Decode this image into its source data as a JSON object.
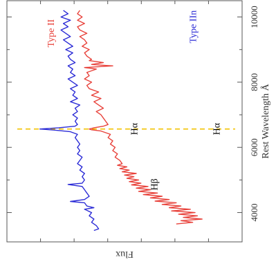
{
  "chart_data": {
    "type": "line",
    "orientation": "rotated-90-ccw",
    "xlabel": "Rest Wavelength Å",
    "ylabel": "Flux",
    "xlim": [
      3100,
      10500
    ],
    "x_ticks": [
      4000,
      6000,
      8000,
      10000
    ],
    "x_tick_labels": [
      "4000",
      "6000",
      "8000",
      "10000"
    ],
    "ylim": [
      0,
      1
    ],
    "grid": false,
    "marker_line": {
      "x": 6563,
      "color": "#f2c200",
      "style": "dashed"
    },
    "series": [
      {
        "name": "Type II",
        "color": "#e8413a",
        "x": [
          3650,
          3700,
          3750,
          3800,
          3850,
          3900,
          3950,
          4000,
          4050,
          4100,
          4150,
          4200,
          4250,
          4300,
          4350,
          4400,
          4450,
          4500,
          4550,
          4600,
          4650,
          4700,
          4750,
          4800,
          4850,
          4900,
          4950,
          5000,
          5050,
          5100,
          5150,
          5200,
          5250,
          5300,
          5350,
          5400,
          5450,
          5500,
          5600,
          5700,
          5800,
          5900,
          6000,
          6100,
          6200,
          6300,
          6400,
          6450,
          6500,
          6540,
          6563,
          6600,
          6650,
          6700,
          6800,
          6900,
          7000,
          7100,
          7200,
          7300,
          7400,
          7500,
          7600,
          7700,
          7800,
          7900,
          8000,
          8100,
          8200,
          8300,
          8400,
          8450,
          8500,
          8542,
          8600,
          8662,
          8700,
          8800,
          8900,
          9000,
          9100,
          9200,
          9300,
          9400,
          9500,
          9600,
          9700,
          9800,
          9900,
          10000,
          10100,
          10200
        ],
        "values": [
          0.72,
          0.79,
          0.74,
          0.83,
          0.75,
          0.81,
          0.73,
          0.8,
          0.7,
          0.78,
          0.69,
          0.74,
          0.66,
          0.72,
          0.63,
          0.69,
          0.61,
          0.66,
          0.58,
          0.64,
          0.56,
          0.61,
          0.55,
          0.6,
          0.53,
          0.57,
          0.52,
          0.56,
          0.51,
          0.54,
          0.5,
          0.55,
          0.49,
          0.52,
          0.48,
          0.51,
          0.47,
          0.49,
          0.48,
          0.46,
          0.47,
          0.45,
          0.46,
          0.44,
          0.45,
          0.43,
          0.44,
          0.42,
          0.4,
          0.36,
          0.35,
          0.37,
          0.41,
          0.43,
          0.42,
          0.41,
          0.4,
          0.38,
          0.41,
          0.39,
          0.37,
          0.4,
          0.36,
          0.39,
          0.35,
          0.34,
          0.36,
          0.33,
          0.35,
          0.34,
          0.38,
          0.33,
          0.45,
          0.36,
          0.41,
          0.35,
          0.36,
          0.34,
          0.33,
          0.35,
          0.32,
          0.34,
          0.33,
          0.31,
          0.34,
          0.31,
          0.3,
          0.33,
          0.3,
          0.32,
          0.3,
          0.31
        ]
      },
      {
        "name": "Type IIn",
        "color": "#2b2bd6",
        "x": [
          3450,
          3500,
          3600,
          3700,
          3800,
          3900,
          4000,
          4100,
          4150,
          4200,
          4300,
          4340,
          4400,
          4500,
          4600,
          4700,
          4800,
          4861,
          4900,
          5000,
          5100,
          5200,
          5300,
          5400,
          5500,
          5600,
          5700,
          5800,
          5900,
          6000,
          6100,
          6200,
          6300,
          6400,
          6480,
          6530,
          6563,
          6600,
          6650,
          6700,
          6800,
          6900,
          7000,
          7100,
          7200,
          7300,
          7400,
          7500,
          7600,
          7700,
          7800,
          7900,
          8000,
          8100,
          8200,
          8300,
          8400,
          8500,
          8600,
          8700,
          8800,
          8900,
          9000,
          9100,
          9200,
          9300,
          9400,
          9500,
          9600,
          9700,
          9800,
          9900,
          10000,
          10100,
          10200
        ],
        "values": [
          0.37,
          0.39,
          0.38,
          0.36,
          0.37,
          0.35,
          0.36,
          0.33,
          0.37,
          0.34,
          0.33,
          0.27,
          0.33,
          0.35,
          0.34,
          0.33,
          0.32,
          0.26,
          0.32,
          0.33,
          0.32,
          0.33,
          0.31,
          0.32,
          0.3,
          0.31,
          0.32,
          0.3,
          0.31,
          0.3,
          0.31,
          0.3,
          0.29,
          0.3,
          0.27,
          0.2,
          0.14,
          0.22,
          0.29,
          0.3,
          0.29,
          0.3,
          0.28,
          0.3,
          0.29,
          0.31,
          0.27,
          0.3,
          0.28,
          0.29,
          0.27,
          0.3,
          0.28,
          0.26,
          0.29,
          0.27,
          0.28,
          0.26,
          0.29,
          0.27,
          0.26,
          0.28,
          0.25,
          0.28,
          0.26,
          0.24,
          0.27,
          0.25,
          0.23,
          0.26,
          0.24,
          0.27,
          0.23,
          0.26,
          0.24
        ]
      }
    ],
    "annotations": [
      {
        "text": "Type II",
        "x": 9500,
        "y": 0.2,
        "color": "#e8413a"
      },
      {
        "text": "Type IIn",
        "x": 9700,
        "y": 0.805,
        "color": "#2b2bd6"
      },
      {
        "text": "Hα",
        "x": 6563,
        "y": 0.555,
        "color": "#000000"
      },
      {
        "text": "Hα",
        "x": 6563,
        "y": 0.905,
        "color": "#000000"
      },
      {
        "text": "Hβ",
        "x": 4861,
        "y": 0.64,
        "color": "#000000"
      }
    ]
  }
}
